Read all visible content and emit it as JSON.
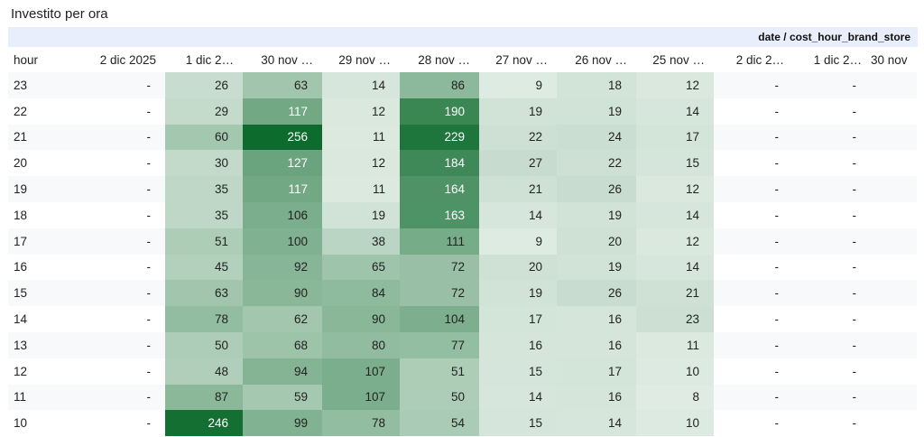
{
  "title": "Investito per ora",
  "dimension_label": "date / cost_hour_brand_store",
  "row_header": "hour",
  "columns": [
    "2 dic 2025",
    "1 dic 2…",
    "30 nov …",
    "29 nov …",
    "28 nov …",
    "27 nov …",
    "26 nov …",
    "25 nov …",
    "2 dic 2…",
    "1 dic 2…",
    "30 nov"
  ],
  "colored_columns": [
    1,
    2,
    3,
    4,
    5,
    6,
    7
  ],
  "max_value": 256,
  "colors": {
    "heat_low": "#f1f6f2",
    "heat_high": "#0d6b2d",
    "dim_bar": "#e8eefc",
    "stripe": "#f8f9fa"
  },
  "rows": [
    {
      "hour": "23",
      "cells": [
        "-",
        "26",
        "63",
        "14",
        "86",
        "9",
        "18",
        "12",
        "-",
        "-",
        ""
      ]
    },
    {
      "hour": "22",
      "cells": [
        "-",
        "29",
        "117",
        "12",
        "190",
        "19",
        "19",
        "14",
        "-",
        "-",
        ""
      ]
    },
    {
      "hour": "21",
      "cells": [
        "-",
        "60",
        "256",
        "11",
        "229",
        "22",
        "24",
        "17",
        "-",
        "-",
        ""
      ]
    },
    {
      "hour": "20",
      "cells": [
        "-",
        "30",
        "127",
        "12",
        "184",
        "27",
        "22",
        "15",
        "-",
        "-",
        ""
      ]
    },
    {
      "hour": "19",
      "cells": [
        "-",
        "35",
        "117",
        "11",
        "164",
        "21",
        "26",
        "12",
        "-",
        "-",
        ""
      ]
    },
    {
      "hour": "18",
      "cells": [
        "-",
        "35",
        "106",
        "19",
        "163",
        "14",
        "19",
        "14",
        "-",
        "-",
        ""
      ]
    },
    {
      "hour": "17",
      "cells": [
        "-",
        "51",
        "100",
        "38",
        "111",
        "9",
        "20",
        "12",
        "-",
        "-",
        ""
      ]
    },
    {
      "hour": "16",
      "cells": [
        "-",
        "45",
        "92",
        "65",
        "72",
        "20",
        "19",
        "14",
        "-",
        "-",
        ""
      ]
    },
    {
      "hour": "15",
      "cells": [
        "-",
        "63",
        "90",
        "84",
        "72",
        "19",
        "26",
        "21",
        "-",
        "-",
        ""
      ]
    },
    {
      "hour": "14",
      "cells": [
        "-",
        "78",
        "62",
        "90",
        "104",
        "17",
        "16",
        "23",
        "-",
        "-",
        ""
      ]
    },
    {
      "hour": "13",
      "cells": [
        "-",
        "50",
        "68",
        "80",
        "77",
        "16",
        "16",
        "11",
        "-",
        "-",
        ""
      ]
    },
    {
      "hour": "12",
      "cells": [
        "-",
        "48",
        "94",
        "107",
        "51",
        "15",
        "17",
        "10",
        "-",
        "-",
        ""
      ]
    },
    {
      "hour": "11",
      "cells": [
        "-",
        "87",
        "59",
        "107",
        "50",
        "14",
        "16",
        "8",
        "-",
        "-",
        ""
      ]
    },
    {
      "hour": "10",
      "cells": [
        "-",
        "246",
        "99",
        "78",
        "54",
        "15",
        "14",
        "10",
        "-",
        "-",
        ""
      ]
    }
  ]
}
